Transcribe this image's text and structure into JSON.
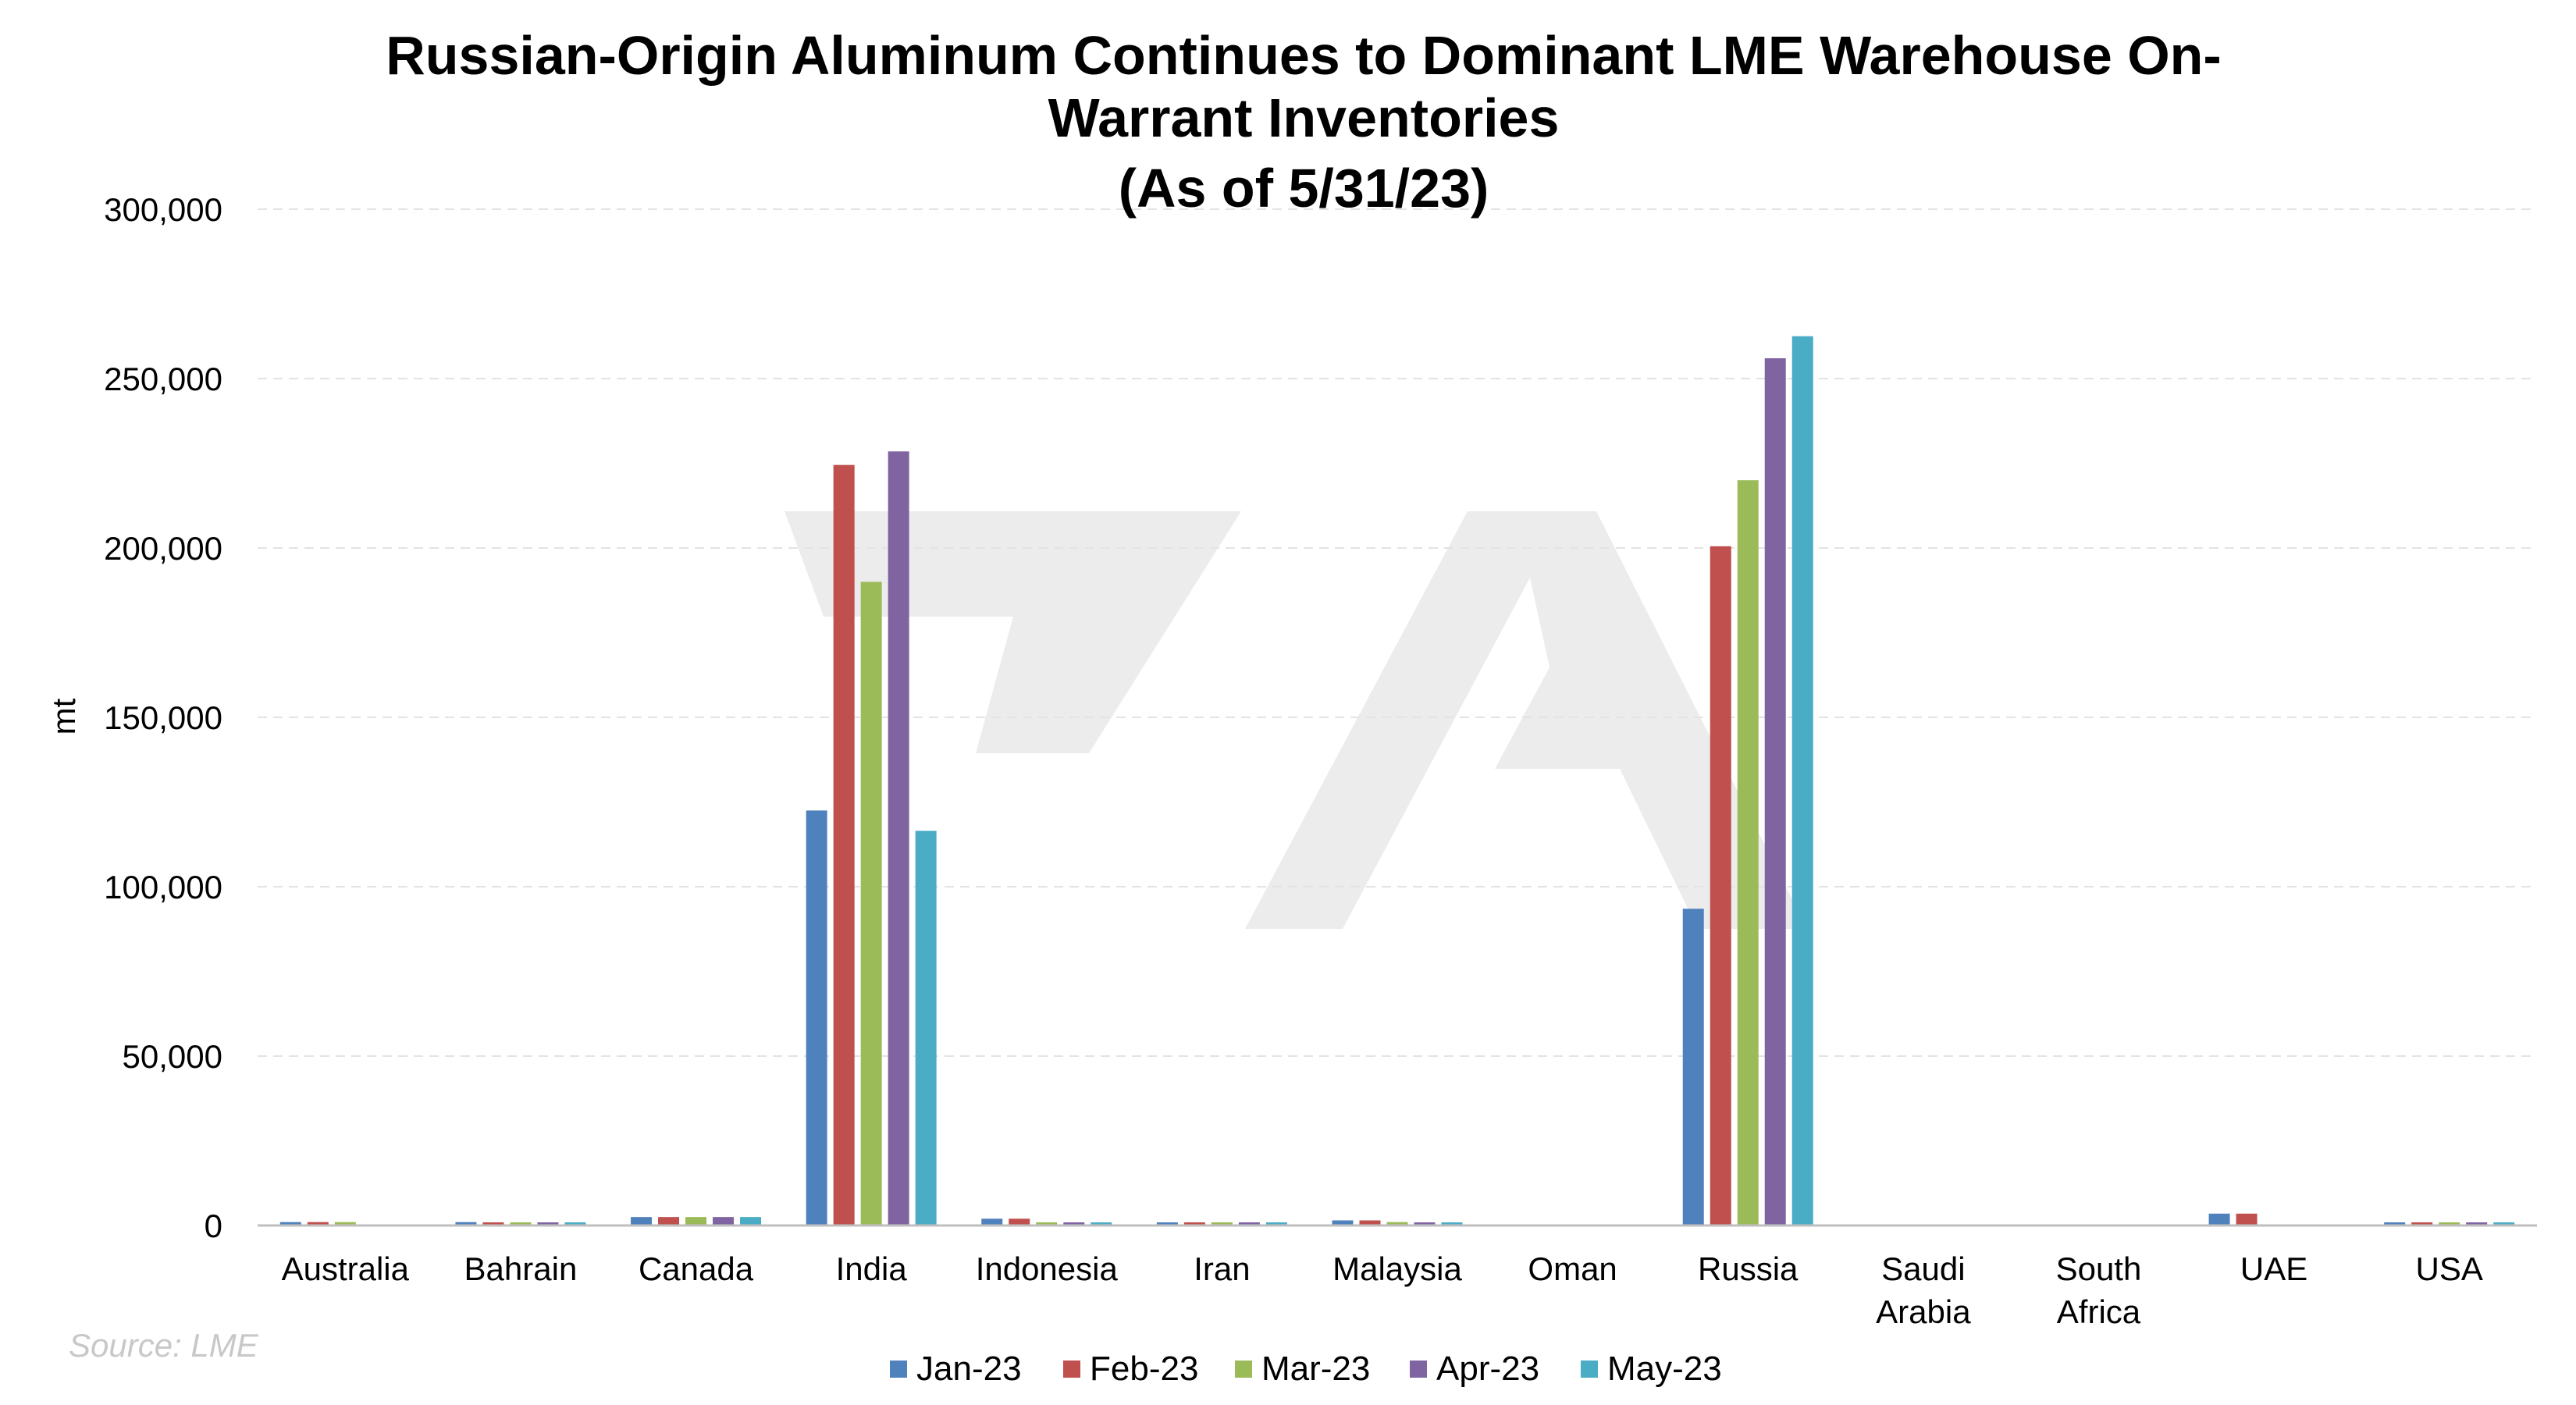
{
  "chart_data": {
    "type": "bar",
    "title_lines": [
      "Russian-Origin Aluminum Continues to Dominant LME Warehouse On-",
      "Warrant Inventories",
      "(As of 5/31/23)"
    ],
    "ylabel": "mt",
    "xlabel": "",
    "ylim": [
      0,
      300000
    ],
    "yticks": [
      0,
      50000,
      100000,
      150000,
      200000,
      250000,
      300000
    ],
    "ytick_labels": [
      "0",
      "50,000",
      "100,000",
      "150,000",
      "200,000",
      "250,000",
      "300,000"
    ],
    "grid": true,
    "legend_position": "bottom",
    "categories": [
      "Australia",
      "Bahrain",
      "Canada",
      "India",
      "Indonesia",
      "Iran",
      "Malaysia",
      "Oman",
      "Russia",
      "Saudi Arabia",
      "South Africa",
      "UAE",
      "USA"
    ],
    "category_lines": [
      [
        "Australia"
      ],
      [
        "Bahrain"
      ],
      [
        "Canada"
      ],
      [
        "India"
      ],
      [
        "Indonesia"
      ],
      [
        "Iran"
      ],
      [
        "Malaysia"
      ],
      [
        "Oman"
      ],
      [
        "Russia"
      ],
      [
        "Saudi",
        "Arabia"
      ],
      [
        "South",
        "Africa"
      ],
      [
        "UAE"
      ],
      [
        "USA"
      ]
    ],
    "series": [
      {
        "name": "Jan-23",
        "color": "#4f81bd",
        "values": [
          1000,
          1000,
          2500,
          122500,
          2000,
          200,
          1500,
          0,
          93500,
          0,
          0,
          3500,
          500
        ]
      },
      {
        "name": "Feb-23",
        "color": "#c0504d",
        "values": [
          1000,
          700,
          2500,
          224500,
          2000,
          200,
          1500,
          0,
          200500,
          0,
          0,
          3500,
          500
        ]
      },
      {
        "name": "Mar-23",
        "color": "#9bbb59",
        "values": [
          1000,
          700,
          2500,
          190000,
          800,
          200,
          1000,
          0,
          220000,
          0,
          0,
          0,
          500
        ]
      },
      {
        "name": "Apr-23",
        "color": "#8064a2",
        "values": [
          0,
          700,
          2500,
          228500,
          800,
          200,
          600,
          0,
          256000,
          0,
          0,
          0,
          500
        ]
      },
      {
        "name": "May-23",
        "color": "#4bacc6",
        "values": [
          0,
          700,
          2500,
          116500,
          800,
          200,
          600,
          0,
          262500,
          0,
          0,
          0,
          500
        ]
      }
    ]
  },
  "source_note": "Source: LME",
  "watermark_logo": "stylized A/7 logo"
}
